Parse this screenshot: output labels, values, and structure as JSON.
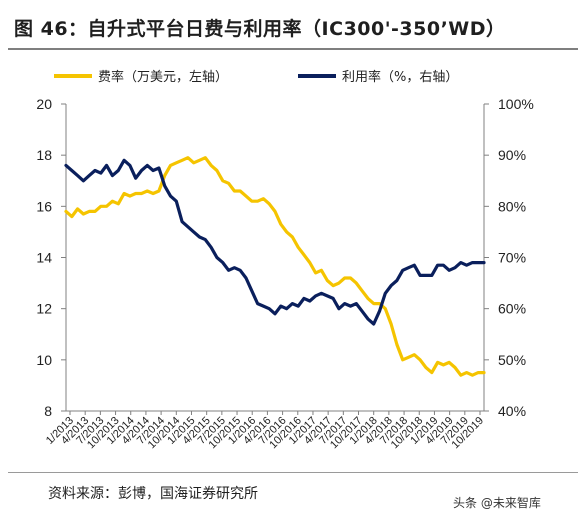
{
  "figure": {
    "title": "图 46：自升式平台日费与利用率（IC300'-350’WD）",
    "source": "资料来源：彭博，国海证券研究所",
    "watermark": "头条 @未来智库"
  },
  "colors": {
    "day_rate": "#F5C400",
    "utilization": "#0A1F5C",
    "axis": "#808080"
  },
  "chart_data": {
    "type": "line",
    "title": "",
    "x_labels": [
      "1/2013",
      "4/2013",
      "7/2013",
      "10/2013",
      "1/2014",
      "4/2014",
      "7/2014",
      "10/2014",
      "1/2015",
      "4/2015",
      "7/2015",
      "10/2015",
      "1/2016",
      "4/2016",
      "7/2016",
      "10/2016",
      "1/2017",
      "4/2017",
      "7/2017",
      "10/2017",
      "1/2018",
      "4/2018",
      "7/2018",
      "10/2018",
      "1/2019",
      "4/2019",
      "7/2019",
      "10/2019"
    ],
    "y_left": {
      "range": [
        8,
        20
      ],
      "ticks": [
        8,
        10,
        12,
        14,
        16,
        18,
        20
      ],
      "unit": "万美元"
    },
    "y_right": {
      "range": [
        0.4,
        1.0
      ],
      "ticks": [
        "40%",
        "50%",
        "60%",
        "70%",
        "80%",
        "90%",
        "100%"
      ]
    },
    "legend": {
      "position": "top"
    },
    "series": [
      {
        "name": "费率（万美元，左轴）",
        "axis": "left",
        "color": "#F5C400",
        "values": [
          15.8,
          15.6,
          15.9,
          15.7,
          15.8,
          15.8,
          16.0,
          16.0,
          16.2,
          16.1,
          16.5,
          16.4,
          16.5,
          16.5,
          16.6,
          16.5,
          16.6,
          17.2,
          17.6,
          17.7,
          17.8,
          17.9,
          17.7,
          17.8,
          17.9,
          17.6,
          17.4,
          17.0,
          16.9,
          16.6,
          16.6,
          16.4,
          16.2,
          16.2,
          16.3,
          16.1,
          15.8,
          15.3,
          15.0,
          14.8,
          14.4,
          14.1,
          13.8,
          13.4,
          13.5,
          13.1,
          12.9,
          13.0,
          13.2,
          13.2,
          13.0,
          12.7,
          12.4,
          12.2,
          12.2,
          12.0,
          11.4,
          10.6,
          10.0,
          10.1,
          10.2,
          10.0,
          9.7,
          9.5,
          9.9,
          9.8,
          9.9,
          9.7,
          9.4,
          9.5,
          9.4,
          9.5,
          9.5
        ]
      },
      {
        "name": "利用率（%，右轴）",
        "axis": "right",
        "color": "#0A1F5C",
        "values": [
          0.88,
          0.87,
          0.86,
          0.85,
          0.86,
          0.87,
          0.865,
          0.88,
          0.86,
          0.87,
          0.89,
          0.88,
          0.855,
          0.87,
          0.88,
          0.87,
          0.875,
          0.84,
          0.82,
          0.81,
          0.77,
          0.76,
          0.75,
          0.74,
          0.735,
          0.72,
          0.7,
          0.69,
          0.675,
          0.68,
          0.675,
          0.66,
          0.635,
          0.61,
          0.605,
          0.6,
          0.59,
          0.605,
          0.6,
          0.61,
          0.605,
          0.62,
          0.615,
          0.625,
          0.63,
          0.625,
          0.62,
          0.6,
          0.61,
          0.605,
          0.61,
          0.595,
          0.58,
          0.57,
          0.595,
          0.63,
          0.645,
          0.655,
          0.675,
          0.68,
          0.685,
          0.665,
          0.665,
          0.665,
          0.685,
          0.685,
          0.675,
          0.68,
          0.69,
          0.685,
          0.69,
          0.69,
          0.69
        ]
      }
    ]
  }
}
